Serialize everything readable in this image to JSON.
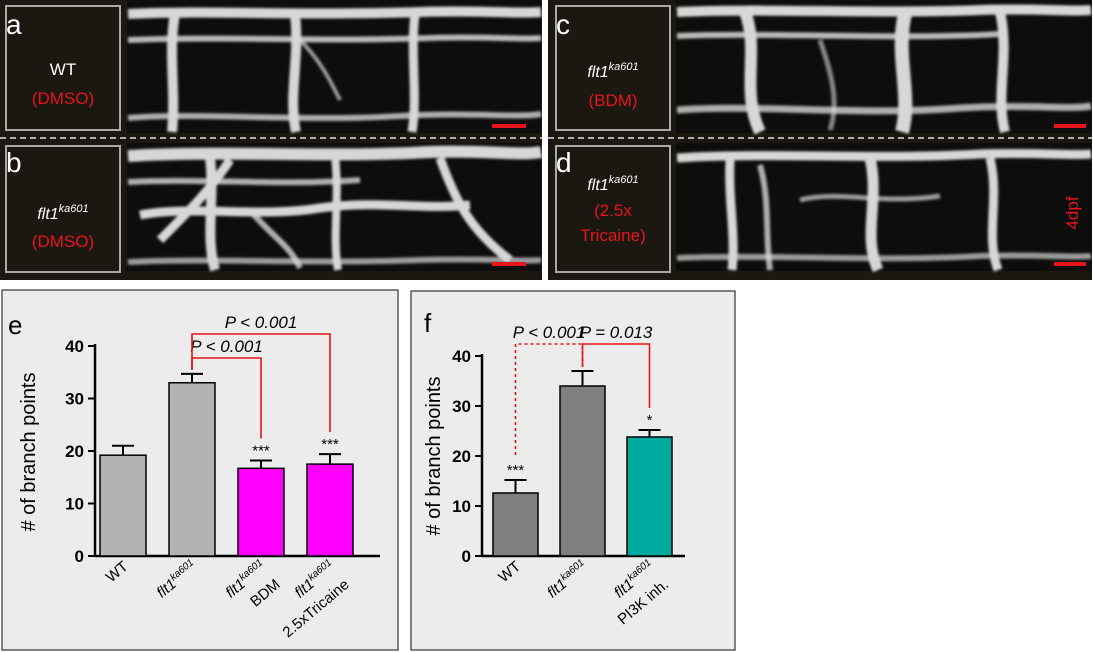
{
  "panels": {
    "a": {
      "letter": "a",
      "line1": "WT",
      "line2": "(DMSO)"
    },
    "b": {
      "letter": "b",
      "gene": "flt1",
      "allele": "ka601",
      "line2": "(DMSO)"
    },
    "c": {
      "letter": "c",
      "gene": "flt1",
      "allele": "ka601",
      "line2": "(BDM)"
    },
    "d": {
      "letter": "d",
      "gene": "flt1",
      "allele": "ka601",
      "line2": "(2.5x",
      "line3": "Tricaine)",
      "stage": "4dpf"
    }
  },
  "colors": {
    "annotation_red": "#e8141b",
    "gray_bar": "#b3b3b3",
    "dark_gray_bar": "#7f7f7f",
    "magenta_bar": "#ff00ff",
    "teal_bar": "#00a99d"
  },
  "chart_data": [
    {
      "panel": "e",
      "type": "bar",
      "ylabel": "# of branch points",
      "ylim": [
        0,
        40
      ],
      "yticks": [
        0,
        10,
        20,
        30,
        40
      ],
      "categories": [
        {
          "main": "WT"
        },
        {
          "gene": "flt1",
          "allele": "ka601"
        },
        {
          "gene": "flt1",
          "allele": "ka601",
          "sub": "BDM"
        },
        {
          "gene": "flt1",
          "allele": "ka601",
          "sub": "2.5xTricaine"
        }
      ],
      "values": [
        19.2,
        33.0,
        16.7,
        17.5
      ],
      "errors": [
        1.8,
        1.7,
        1.5,
        1.9
      ],
      "colors": [
        "#b3b3b3",
        "#b3b3b3",
        "#ff00ff",
        "#ff00ff"
      ],
      "significance": [
        "",
        "",
        "***",
        "***"
      ],
      "comparisons": [
        {
          "from": 1,
          "to": 2,
          "label": "P < 0.001",
          "level": 1
        },
        {
          "from": 1,
          "to": 3,
          "label": "P < 0.001",
          "level": 2
        }
      ]
    },
    {
      "panel": "f",
      "type": "bar",
      "ylabel": "# of branch points",
      "ylim": [
        0,
        40
      ],
      "yticks": [
        0,
        10,
        20,
        30,
        40
      ],
      "categories": [
        {
          "main": "WT"
        },
        {
          "gene": "flt1",
          "allele": "ka601"
        },
        {
          "gene": "flt1",
          "allele": "ka601",
          "sub": "PI3K inh."
        }
      ],
      "values": [
        12.6,
        34.0,
        23.8
      ],
      "errors": [
        2.6,
        3.0,
        1.4
      ],
      "colors": [
        "#7f7f7f",
        "#7f7f7f",
        "#00a99d"
      ],
      "significance": [
        "***",
        "",
        "*"
      ],
      "comparisons": [
        {
          "from": 1,
          "to": 0,
          "label": "P < 0.001",
          "level": 1,
          "dashed": true
        },
        {
          "from": 1,
          "to": 2,
          "label": "P = 0.013",
          "level": 1
        }
      ]
    }
  ]
}
